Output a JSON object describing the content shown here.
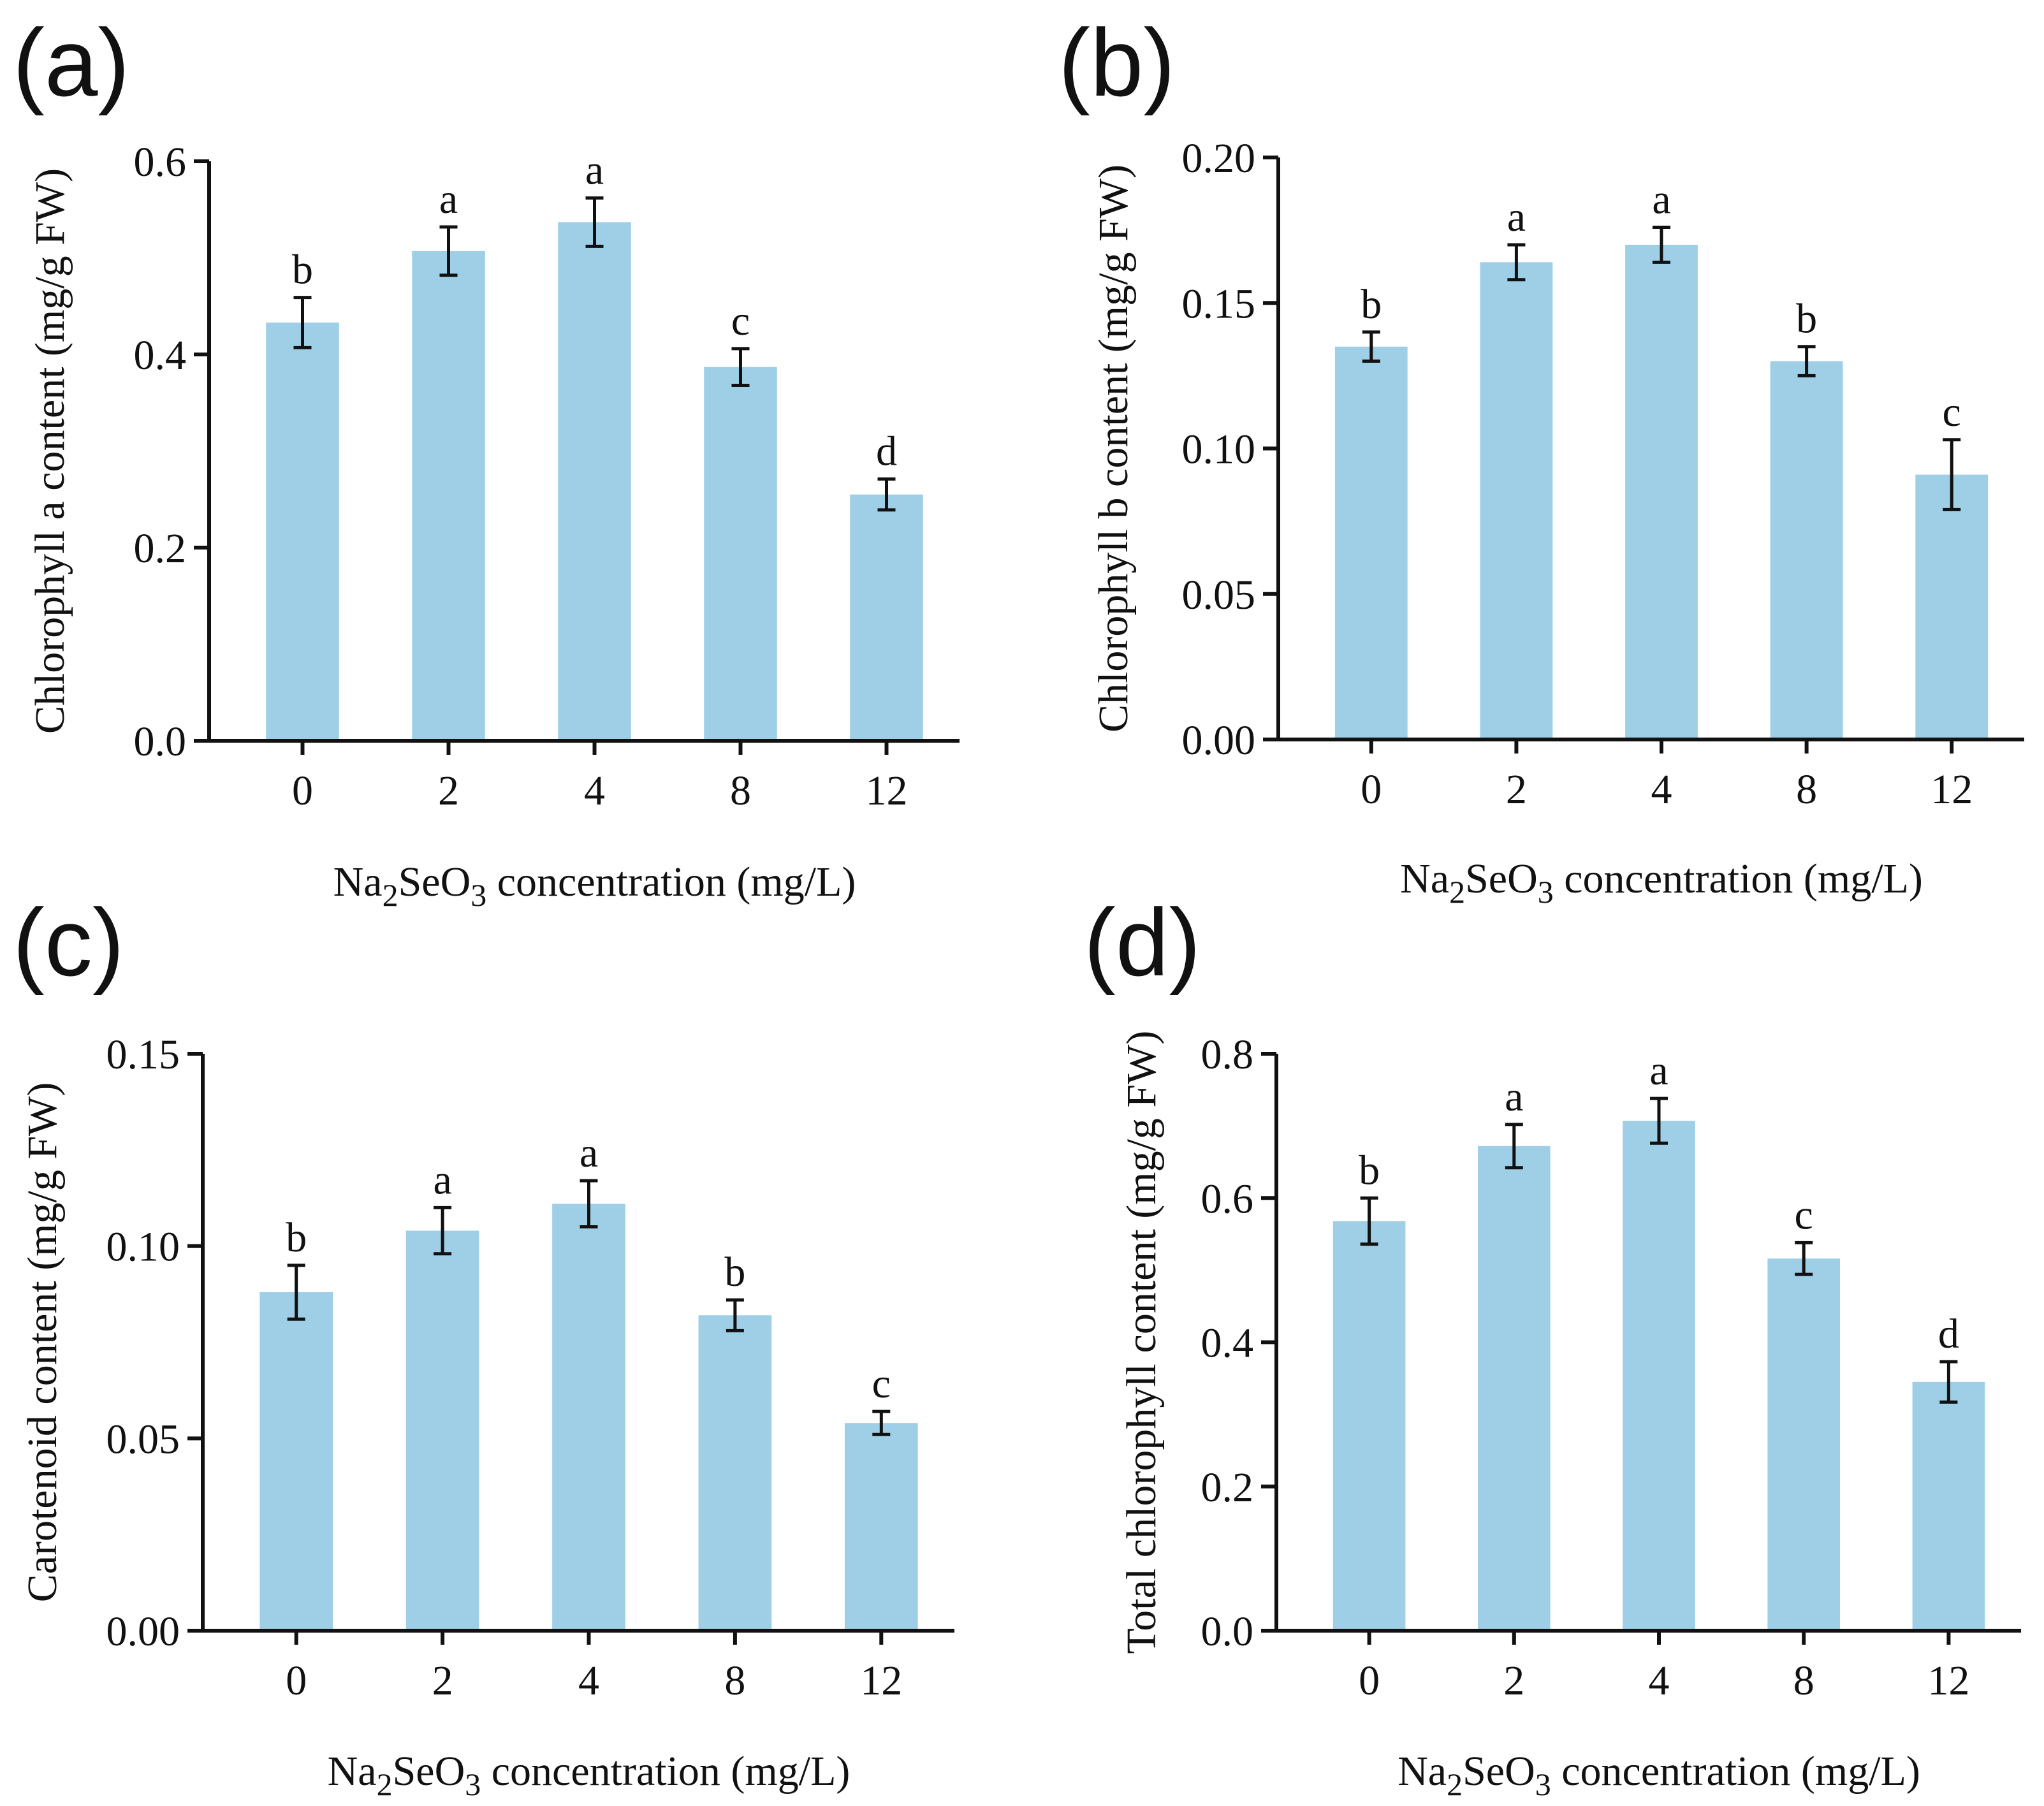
{
  "figure": {
    "bar_color": "#9ecfe6",
    "axis_color": "#111111"
  },
  "chart_data": [
    {
      "type": "bar",
      "panel_label": "(a)",
      "categories": [
        "0",
        "2",
        "4",
        "8",
        "12"
      ],
      "values": [
        0.433,
        0.507,
        0.537,
        0.387,
        0.255
      ],
      "errors": [
        0.026,
        0.025,
        0.025,
        0.019,
        0.016
      ],
      "significance": [
        "b",
        "a",
        "a",
        "c",
        "d"
      ],
      "xlabel": "Na2SeO3 concentration (mg/L)",
      "xlabel_parts": {
        "a": "Na",
        "b": "2",
        "c": "SeO",
        "d": "3",
        "e": " concentration (mg/L)"
      },
      "ylabel": "Chlorophyll a content (mg/g FW)",
      "ylim": [
        0,
        0.6
      ],
      "yticks": [
        "0.0",
        "0.2",
        "0.4",
        "0.6"
      ]
    },
    {
      "type": "bar",
      "panel_label": "(b)",
      "categories": [
        "0",
        "2",
        "4",
        "8",
        "12"
      ],
      "values": [
        0.135,
        0.164,
        0.17,
        0.13,
        0.091
      ],
      "errors": [
        0.005,
        0.006,
        0.006,
        0.005,
        0.012
      ],
      "significance": [
        "b",
        "a",
        "a",
        "b",
        "c"
      ],
      "xlabel": "Na2SeO3 concentration (mg/L)",
      "xlabel_parts": {
        "a": "Na",
        "b": "2",
        "c": "SeO",
        "d": "3",
        "e": " concentration (mg/L)"
      },
      "ylabel": "Chlorophyll b content (mg/g FW)",
      "ylim": [
        0,
        0.2
      ],
      "yticks": [
        "0.00",
        "0.05",
        "0.10",
        "0.15",
        "0.20"
      ]
    },
    {
      "type": "bar",
      "panel_label": "(c)",
      "categories": [
        "0",
        "2",
        "4",
        "8",
        "12"
      ],
      "values": [
        0.088,
        0.104,
        0.111,
        0.082,
        0.054
      ],
      "errors": [
        0.007,
        0.006,
        0.006,
        0.004,
        0.003
      ],
      "significance": [
        "b",
        "a",
        "a",
        "b",
        "c"
      ],
      "xlabel": "Na2SeO3 concentration (mg/L)",
      "xlabel_parts": {
        "a": "Na",
        "b": "2",
        "c": "SeO",
        "d": "3",
        "e": " concentration (mg/L)"
      },
      "ylabel": "Carotenoid content (mg/g FW)",
      "ylim": [
        0,
        0.15
      ],
      "yticks": [
        "0.00",
        "0.05",
        "0.10",
        "0.15"
      ]
    },
    {
      "type": "bar",
      "panel_label": "(d)",
      "categories": [
        "0",
        "2",
        "4",
        "8",
        "12"
      ],
      "values": [
        0.568,
        0.672,
        0.707,
        0.516,
        0.345
      ],
      "errors": [
        0.032,
        0.03,
        0.031,
        0.022,
        0.028
      ],
      "significance": [
        "b",
        "a",
        "a",
        "c",
        "d"
      ],
      "xlabel": "Na2SeO3 concentration (mg/L)",
      "xlabel_parts": {
        "a": "Na",
        "b": "2",
        "c": "SeO",
        "d": "3",
        "e": " concentration (mg/L)"
      },
      "ylabel": "Total chlorophyll content (mg/g FW)",
      "ylim": [
        0,
        0.8
      ],
      "yticks": [
        "0.0",
        "0.2",
        "0.4",
        "0.6",
        "0.8"
      ]
    }
  ]
}
